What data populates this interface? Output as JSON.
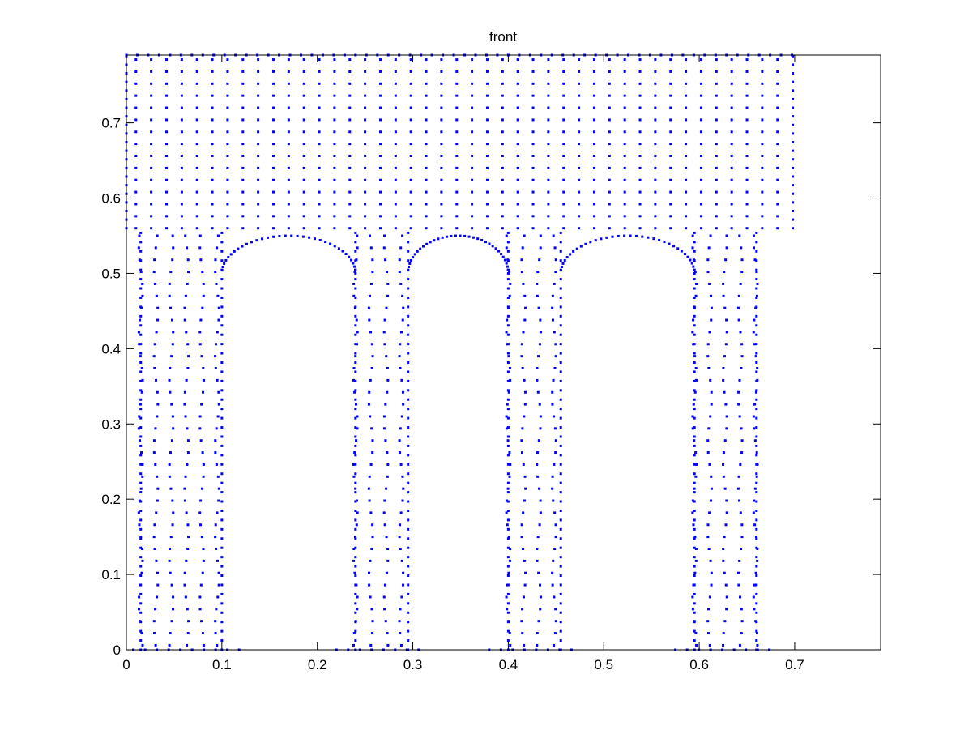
{
  "figure": {
    "background_color": "#ffffff"
  },
  "chart_data": {
    "type": "scatter",
    "title": "front",
    "xlabel": "",
    "ylabel": "",
    "xlim": [
      0,
      0.79
    ],
    "ylim": [
      0,
      0.79
    ],
    "xticks": [
      0,
      0.1,
      0.2,
      0.3,
      0.4,
      0.5,
      0.6,
      0.7
    ],
    "xtick_labels": [
      "0",
      "0.1",
      "0.2",
      "0.3",
      "0.4",
      "0.5",
      "0.6",
      "0.7"
    ],
    "yticks": [
      0,
      0.1,
      0.2,
      0.3,
      0.4,
      0.5,
      0.6,
      0.7
    ],
    "ytick_labels": [
      "0",
      "0.1",
      "0.2",
      "0.3",
      "0.4",
      "0.5",
      "0.6",
      "0.7"
    ],
    "grid": false,
    "legend": "none",
    "marker": "dot",
    "marker_color": "#0000ff",
    "axes_color": "#000000",
    "point_spacing": 0.016,
    "top_block": {
      "x": [
        0.0,
        0.7
      ],
      "y": [
        0.56,
        0.79
      ]
    },
    "legs": [
      {
        "x": [
          0.015,
          0.1
        ]
      },
      {
        "x": [
          0.24,
          0.295
        ]
      },
      {
        "x": [
          0.4,
          0.455
        ]
      },
      {
        "x": [
          0.595,
          0.66
        ]
      }
    ],
    "leg_y": [
      0.0,
      0.56
    ]
  }
}
